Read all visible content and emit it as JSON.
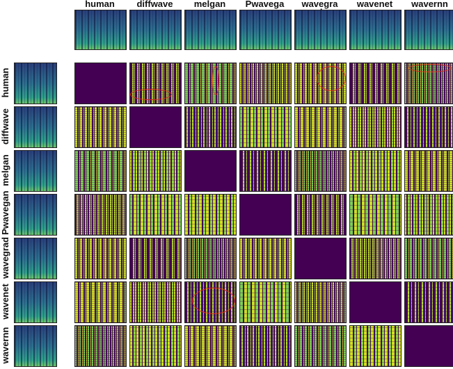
{
  "columns": [
    "human",
    "diffwave",
    "melgan",
    "Pwavegan",
    "wavegrad",
    "wavenet",
    "wavernn"
  ],
  "rows": [
    "human",
    "diffwave",
    "melgan",
    "Pwavegan",
    "wavegrad",
    "wavenet",
    "wavernn"
  ]
}
